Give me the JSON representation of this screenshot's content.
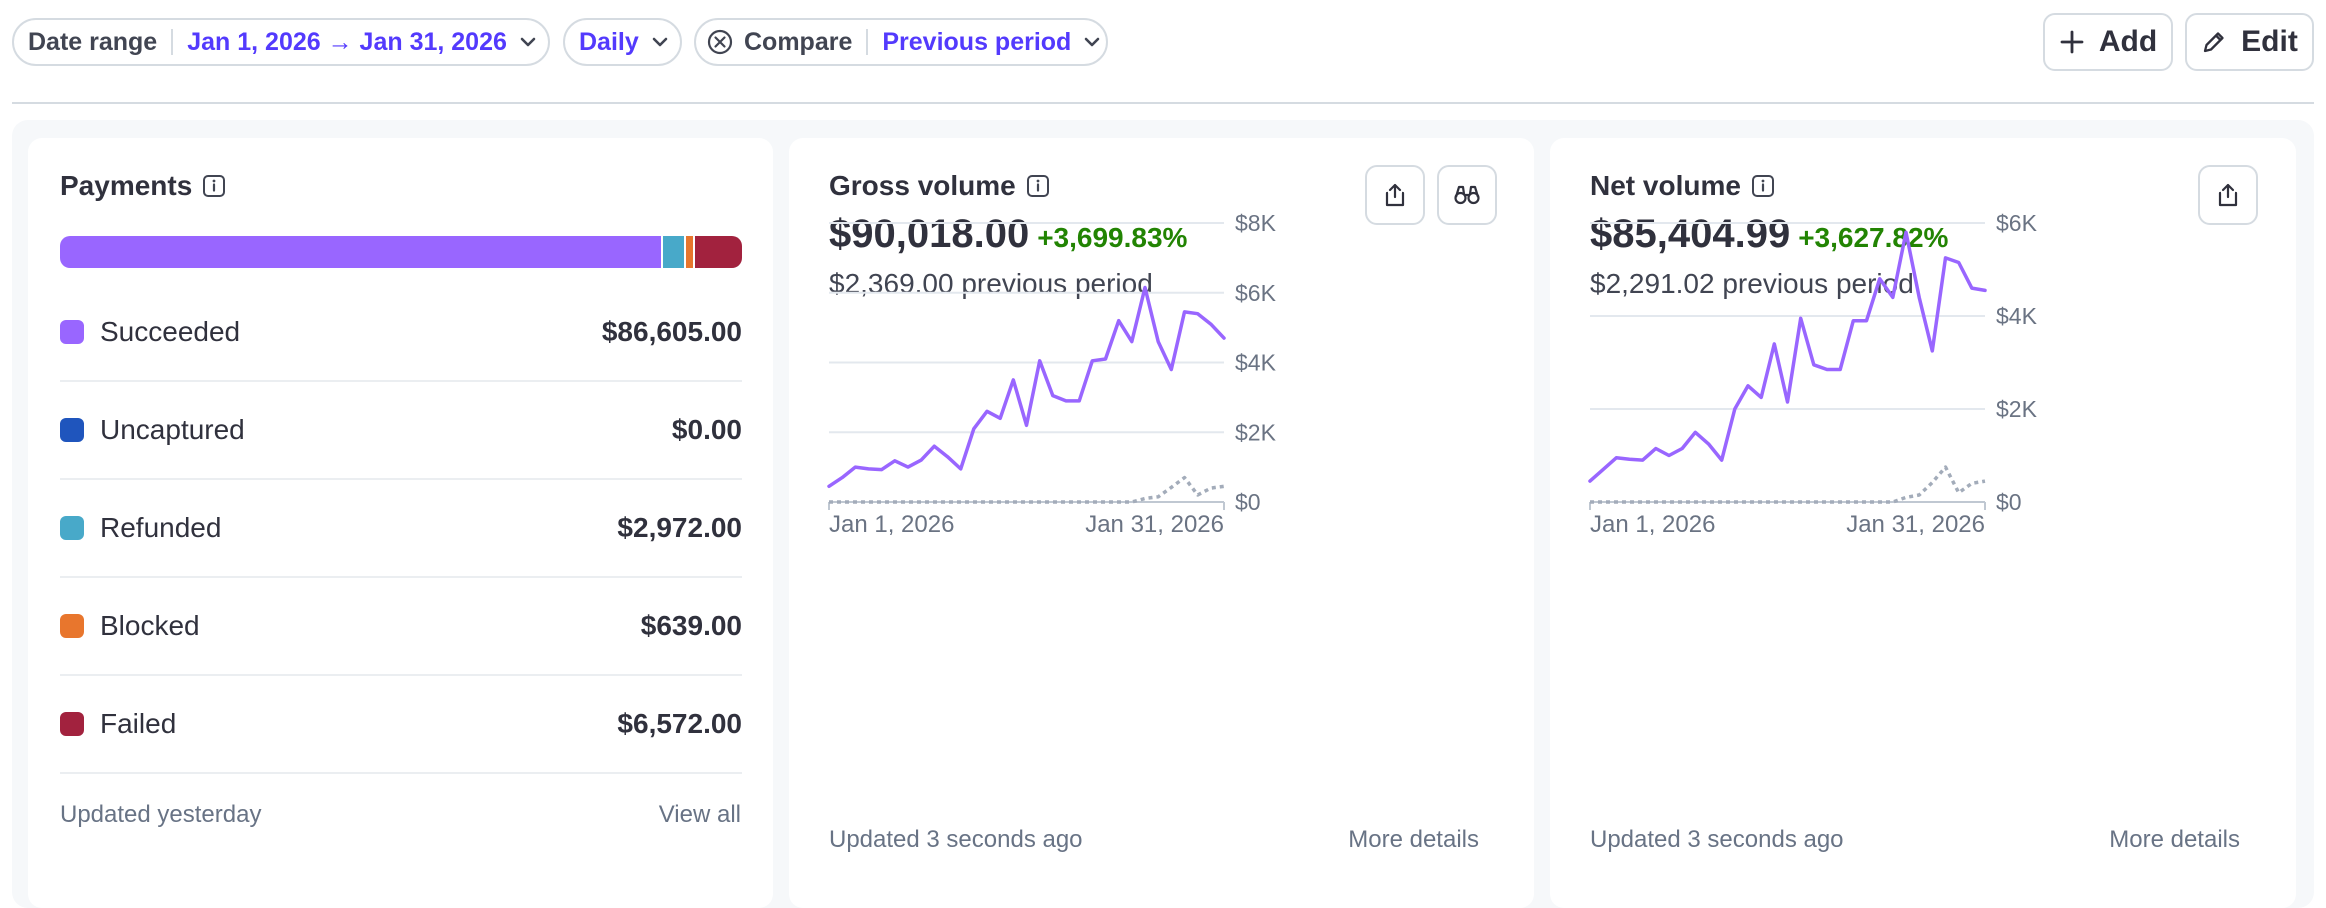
{
  "filters": {
    "date_range_label": "Date range",
    "date_range_value": "Jan 1, 2026 → Jan 31, 2026",
    "interval_value": "Daily",
    "compare_label": "Compare",
    "compare_value": "Previous period"
  },
  "actions": {
    "add_label": "Add",
    "edit_label": "Edit"
  },
  "colors": {
    "accent": "#533afd",
    "series": "#9966ff",
    "positive": "#228403",
    "compare": "#a3acba"
  },
  "payments": {
    "title": "Payments",
    "items": [
      {
        "label": "Succeeded",
        "amount": "$86,605.00",
        "color": "#9966ff"
      },
      {
        "label": "Uncaptured",
        "amount": "$0.00",
        "color": "#1f55bd"
      },
      {
        "label": "Refunded",
        "amount": "$2,972.00",
        "color": "#48a9c9"
      },
      {
        "label": "Blocked",
        "amount": "$639.00",
        "color": "#e8762d"
      },
      {
        "label": "Failed",
        "amount": "$6,572.00",
        "color": "#a2223e"
      }
    ],
    "footer_left": "Updated yesterday",
    "footer_right": "View all"
  },
  "gross": {
    "title": "Gross volume",
    "value": "$90,018.00",
    "change": "+3,699.83%",
    "previous": "$2,369.00 previous period",
    "footer_left": "Updated 3 seconds ago",
    "footer_right": "More details"
  },
  "net": {
    "title": "Net volume",
    "value": "$85,404.99",
    "change": "+3,627.82%",
    "previous": "$2,291.02 previous period",
    "footer_left": "Updated 3 seconds ago",
    "footer_right": "More details"
  },
  "chart_data": [
    {
      "type": "line",
      "title": "Gross volume",
      "x": [
        "Jan 1, 2026",
        "Jan 2",
        "Jan 3",
        "Jan 4",
        "Jan 5",
        "Jan 6",
        "Jan 7",
        "Jan 8",
        "Jan 9",
        "Jan 10",
        "Jan 11",
        "Jan 12",
        "Jan 13",
        "Jan 14",
        "Jan 15",
        "Jan 16",
        "Jan 17",
        "Jan 18",
        "Jan 19",
        "Jan 20",
        "Jan 21",
        "Jan 22",
        "Jan 23",
        "Jan 24",
        "Jan 25",
        "Jan 26",
        "Jan 27",
        "Jan 28",
        "Jan 29",
        "Jan 30",
        "Jan 31, 2026"
      ],
      "x_tick_labels": [
        "Jan 1, 2026",
        "Jan 31, 2026"
      ],
      "series": [
        {
          "style": "solid",
          "values": [
            450,
            700,
            1000,
            950,
            930,
            1180,
            1000,
            1200,
            1600,
            1300,
            950,
            2100,
            2600,
            2400,
            3500,
            2200,
            4050,
            3050,
            2900,
            2900,
            4050,
            4100,
            5200,
            4600,
            6150,
            4600,
            3800,
            5450,
            5400,
            5100,
            4700
          ]
        },
        {
          "style": "dotted",
          "values": [
            0,
            0,
            0,
            0,
            0,
            0,
            0,
            0,
            0,
            0,
            0,
            0,
            0,
            0,
            0,
            0,
            0,
            0,
            0,
            0,
            0,
            0,
            0,
            0,
            100,
            150,
            420,
            700,
            200,
            400,
            450
          ]
        }
      ],
      "yticks": [
        "$0",
        "$2K",
        "$4K",
        "$6K",
        "$8K"
      ],
      "ylim": [
        0,
        8000
      ]
    },
    {
      "type": "line",
      "title": "Net volume",
      "x": [
        "Jan 1, 2026",
        "Jan 2",
        "Jan 3",
        "Jan 4",
        "Jan 5",
        "Jan 6",
        "Jan 7",
        "Jan 8",
        "Jan 9",
        "Jan 10",
        "Jan 11",
        "Jan 12",
        "Jan 13",
        "Jan 14",
        "Jan 15",
        "Jan 16",
        "Jan 17",
        "Jan 18",
        "Jan 19",
        "Jan 20",
        "Jan 21",
        "Jan 22",
        "Jan 23",
        "Jan 24",
        "Jan 25",
        "Jan 26",
        "Jan 27",
        "Jan 28",
        "Jan 29",
        "Jan 30",
        "Jan 31, 2026"
      ],
      "x_tick_labels": [
        "Jan 1, 2026",
        "Jan 31, 2026"
      ],
      "series": [
        {
          "style": "solid",
          "values": [
            450,
            700,
            950,
            920,
            900,
            1150,
            1000,
            1150,
            1500,
            1250,
            900,
            2000,
            2500,
            2250,
            3400,
            2150,
            3950,
            2950,
            2850,
            2850,
            3900,
            3900,
            4800,
            4400,
            5800,
            4400,
            3250,
            5250,
            5150,
            4600,
            4550
          ]
        },
        {
          "style": "dotted",
          "values": [
            0,
            0,
            0,
            0,
            0,
            0,
            0,
            0,
            0,
            0,
            0,
            0,
            0,
            0,
            0,
            0,
            0,
            0,
            0,
            0,
            0,
            0,
            0,
            0,
            100,
            150,
            420,
            750,
            200,
            400,
            450
          ]
        }
      ],
      "yticks": [
        "$0",
        "$2K",
        "$4K",
        "$6K"
      ],
      "ylim": [
        0,
        6000
      ]
    }
  ]
}
